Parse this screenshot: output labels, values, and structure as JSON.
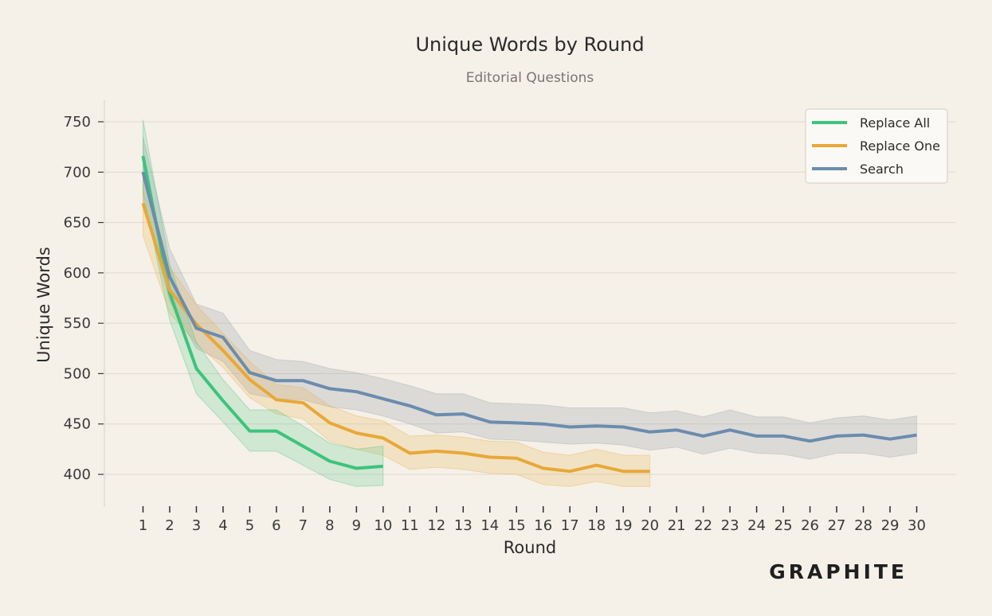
{
  "chart_data": {
    "type": "line",
    "title": "Unique Words by Round",
    "subtitle": "Editorial Questions",
    "xlabel": "Round",
    "ylabel": "Unique Words",
    "ylim": [
      368,
      772
    ],
    "yticks": [
      400,
      450,
      500,
      550,
      600,
      650,
      700,
      750
    ],
    "x": [
      1,
      2,
      3,
      4,
      5,
      6,
      7,
      8,
      9,
      10,
      11,
      12,
      13,
      14,
      15,
      16,
      17,
      18,
      19,
      20,
      21,
      22,
      23,
      24,
      25,
      26,
      27,
      28,
      29,
      30
    ],
    "grid": true,
    "legend_position": "top-right",
    "series": [
      {
        "name": "Replace All",
        "color": "#3cc47c",
        "x": [
          1,
          2,
          3,
          4,
          5,
          6,
          7,
          8,
          9,
          10
        ],
        "values": [
          716,
          580,
          505,
          473,
          443,
          443,
          428,
          413,
          406,
          408
        ],
        "lower": [
          680,
          553,
          480,
          452,
          423,
          423,
          409,
          395,
          388,
          389
        ],
        "upper": [
          752,
          608,
          531,
          494,
          464,
          464,
          448,
          431,
          425,
          428
        ]
      },
      {
        "name": "Replace One",
        "color": "#e8a838",
        "x": [
          1,
          2,
          3,
          4,
          5,
          6,
          7,
          8,
          9,
          10,
          11,
          12,
          13,
          14,
          15,
          16,
          17,
          18,
          19,
          20
        ],
        "values": [
          669,
          583,
          549,
          523,
          494,
          474,
          471,
          451,
          441,
          436,
          421,
          423,
          421,
          417,
          416,
          406,
          403,
          409,
          403,
          403
        ],
        "lower": [
          637,
          560,
          530,
          506,
          476,
          460,
          455,
          433,
          425,
          419,
          405,
          407,
          405,
          401,
          400,
          390,
          388,
          393,
          388,
          388
        ],
        "upper": [
          702,
          606,
          568,
          540,
          512,
          489,
          486,
          468,
          458,
          453,
          438,
          439,
          437,
          433,
          432,
          422,
          419,
          425,
          419,
          419
        ]
      },
      {
        "name": "Search",
        "color": "#6b8cae",
        "x": [
          1,
          2,
          3,
          4,
          5,
          6,
          7,
          8,
          9,
          10,
          11,
          12,
          13,
          14,
          15,
          16,
          17,
          18,
          19,
          20,
          21,
          22,
          23,
          24,
          25,
          26,
          27,
          28,
          29,
          30
        ],
        "values": [
          700,
          596,
          545,
          536,
          501,
          493,
          493,
          485,
          482,
          475,
          468,
          459,
          460,
          452,
          451,
          450,
          447,
          448,
          447,
          442,
          444,
          438,
          444,
          438,
          438,
          433,
          438,
          439,
          435,
          439
        ],
        "lower": [
          670,
          572,
          525,
          512,
          480,
          475,
          474,
          467,
          464,
          458,
          450,
          441,
          442,
          435,
          434,
          432,
          430,
          431,
          429,
          424,
          427,
          420,
          426,
          421,
          420,
          415,
          421,
          421,
          417,
          421
        ],
        "upper": [
          735,
          624,
          569,
          560,
          523,
          514,
          512,
          505,
          501,
          495,
          488,
          480,
          480,
          471,
          470,
          469,
          466,
          466,
          466,
          461,
          463,
          457,
          464,
          457,
          457,
          451,
          456,
          458,
          454,
          458
        ]
      }
    ]
  },
  "logo_text": "GRAPHITE"
}
